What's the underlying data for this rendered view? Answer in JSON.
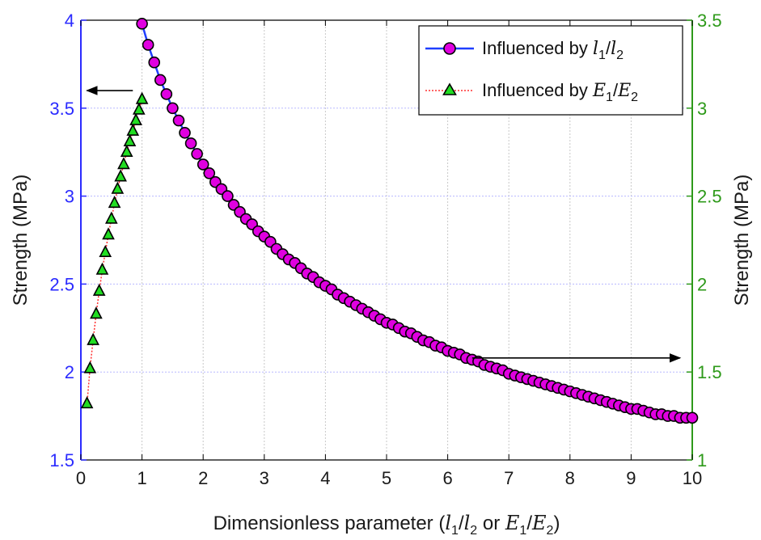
{
  "chart_data": {
    "type": "line",
    "x_axis": {
      "label_prefix": "Dimensionless parameter (",
      "label_var1": "l",
      "label_sub1": "1",
      "label_mid1": "/",
      "label_var2": "l",
      "label_sub2": "2",
      "label_or": " or ",
      "label_var3": "E",
      "label_sub3": "1",
      "label_mid2": "/",
      "label_var4": "E",
      "label_sub4": "2",
      "label_suffix": ")",
      "range": [
        0,
        10
      ],
      "ticks": [
        "0",
        "1",
        "2",
        "3",
        "4",
        "5",
        "6",
        "7",
        "8",
        "9",
        "10"
      ]
    },
    "y_left": {
      "label": "Strength (MPa)",
      "range": [
        1.5,
        4
      ],
      "ticks": [
        "1.5",
        "2",
        "2.5",
        "3",
        "3.5",
        "4"
      ],
      "color": "#2b2bff"
    },
    "y_right": {
      "label": "Strength (MPa)",
      "range": [
        1,
        3.5
      ],
      "ticks": [
        "1",
        "1.5",
        "2",
        "2.5",
        "3",
        "3.5"
      ],
      "color": "#2e9a1a"
    },
    "grid": true,
    "legend_position": "top-right",
    "series": [
      {
        "axis": "left",
        "line_color": "#1f3fff",
        "marker": "circle",
        "marker_color": "#e000e0",
        "legend_label": "Influenced by ",
        "legend_var1": "l",
        "legend_sub1": "1",
        "legend_mid": "/",
        "legend_var2": "l",
        "legend_sub2": "2",
        "x": [
          1.0,
          1.1,
          1.2,
          1.3,
          1.4,
          1.5,
          1.6,
          1.7,
          1.8,
          1.9,
          2.0,
          2.1,
          2.2,
          2.3,
          2.4,
          2.5,
          2.6,
          2.7,
          2.8,
          2.9,
          3.0,
          3.1,
          3.2,
          3.3,
          3.4,
          3.5,
          3.6,
          3.7,
          3.8,
          3.9,
          4.0,
          4.1,
          4.2,
          4.3,
          4.4,
          4.5,
          4.6,
          4.7,
          4.8,
          4.9,
          5.0,
          5.1,
          5.2,
          5.3,
          5.4,
          5.5,
          5.6,
          5.7,
          5.8,
          5.9,
          6.0,
          6.1,
          6.2,
          6.3,
          6.4,
          6.5,
          6.6,
          6.7,
          6.8,
          6.9,
          7.0,
          7.1,
          7.2,
          7.3,
          7.4,
          7.5,
          7.6,
          7.7,
          7.8,
          7.9,
          8.0,
          8.1,
          8.2,
          8.3,
          8.4,
          8.5,
          8.6,
          8.7,
          8.8,
          8.9,
          9.0,
          9.1,
          9.2,
          9.3,
          9.4,
          9.5,
          9.6,
          9.7,
          9.8,
          9.9,
          10.0
        ],
        "y": [
          3.98,
          3.86,
          3.76,
          3.66,
          3.58,
          3.5,
          3.43,
          3.36,
          3.3,
          3.24,
          3.18,
          3.13,
          3.08,
          3.04,
          3.0,
          2.95,
          2.91,
          2.87,
          2.84,
          2.8,
          2.77,
          2.74,
          2.7,
          2.67,
          2.64,
          2.62,
          2.59,
          2.56,
          2.54,
          2.51,
          2.49,
          2.47,
          2.44,
          2.42,
          2.4,
          2.38,
          2.36,
          2.34,
          2.32,
          2.3,
          2.28,
          2.27,
          2.25,
          2.23,
          2.22,
          2.2,
          2.18,
          2.17,
          2.15,
          2.14,
          2.12,
          2.11,
          2.1,
          2.08,
          2.07,
          2.06,
          2.04,
          2.03,
          2.02,
          2.01,
          1.99,
          1.98,
          1.97,
          1.96,
          1.95,
          1.94,
          1.93,
          1.92,
          1.91,
          1.9,
          1.89,
          1.88,
          1.87,
          1.86,
          1.85,
          1.84,
          1.83,
          1.82,
          1.81,
          1.8,
          1.79,
          1.79,
          1.78,
          1.77,
          1.76,
          1.76,
          1.75,
          1.75,
          1.74,
          1.74,
          1.74
        ]
      },
      {
        "axis": "right",
        "line_color": "#ff3030",
        "marker": "triangle",
        "marker_color": "#22dd22",
        "legend_label": "Influenced by ",
        "legend_var1": "E",
        "legend_sub1": "1",
        "legend_mid": "/",
        "legend_var2": "E",
        "legend_sub2": "2",
        "x": [
          0.1,
          0.15,
          0.2,
          0.25,
          0.3,
          0.35,
          0.4,
          0.45,
          0.5,
          0.55,
          0.6,
          0.65,
          0.7,
          0.75,
          0.8,
          0.85,
          0.9,
          0.95,
          1.0
        ],
        "y": [
          1.32,
          1.52,
          1.68,
          1.83,
          1.96,
          2.08,
          2.18,
          2.28,
          2.37,
          2.46,
          2.54,
          2.61,
          2.68,
          2.75,
          2.81,
          2.87,
          2.93,
          2.99,
          3.05
        ]
      }
    ],
    "annotations": [
      {
        "type": "arrow",
        "direction": "left",
        "x_from": 0.85,
        "x_to": 0.1,
        "y_left": 3.6
      },
      {
        "type": "arrow",
        "direction": "right",
        "x_from": 6.4,
        "x_to": 9.8,
        "y_left": 2.08
      }
    ]
  }
}
